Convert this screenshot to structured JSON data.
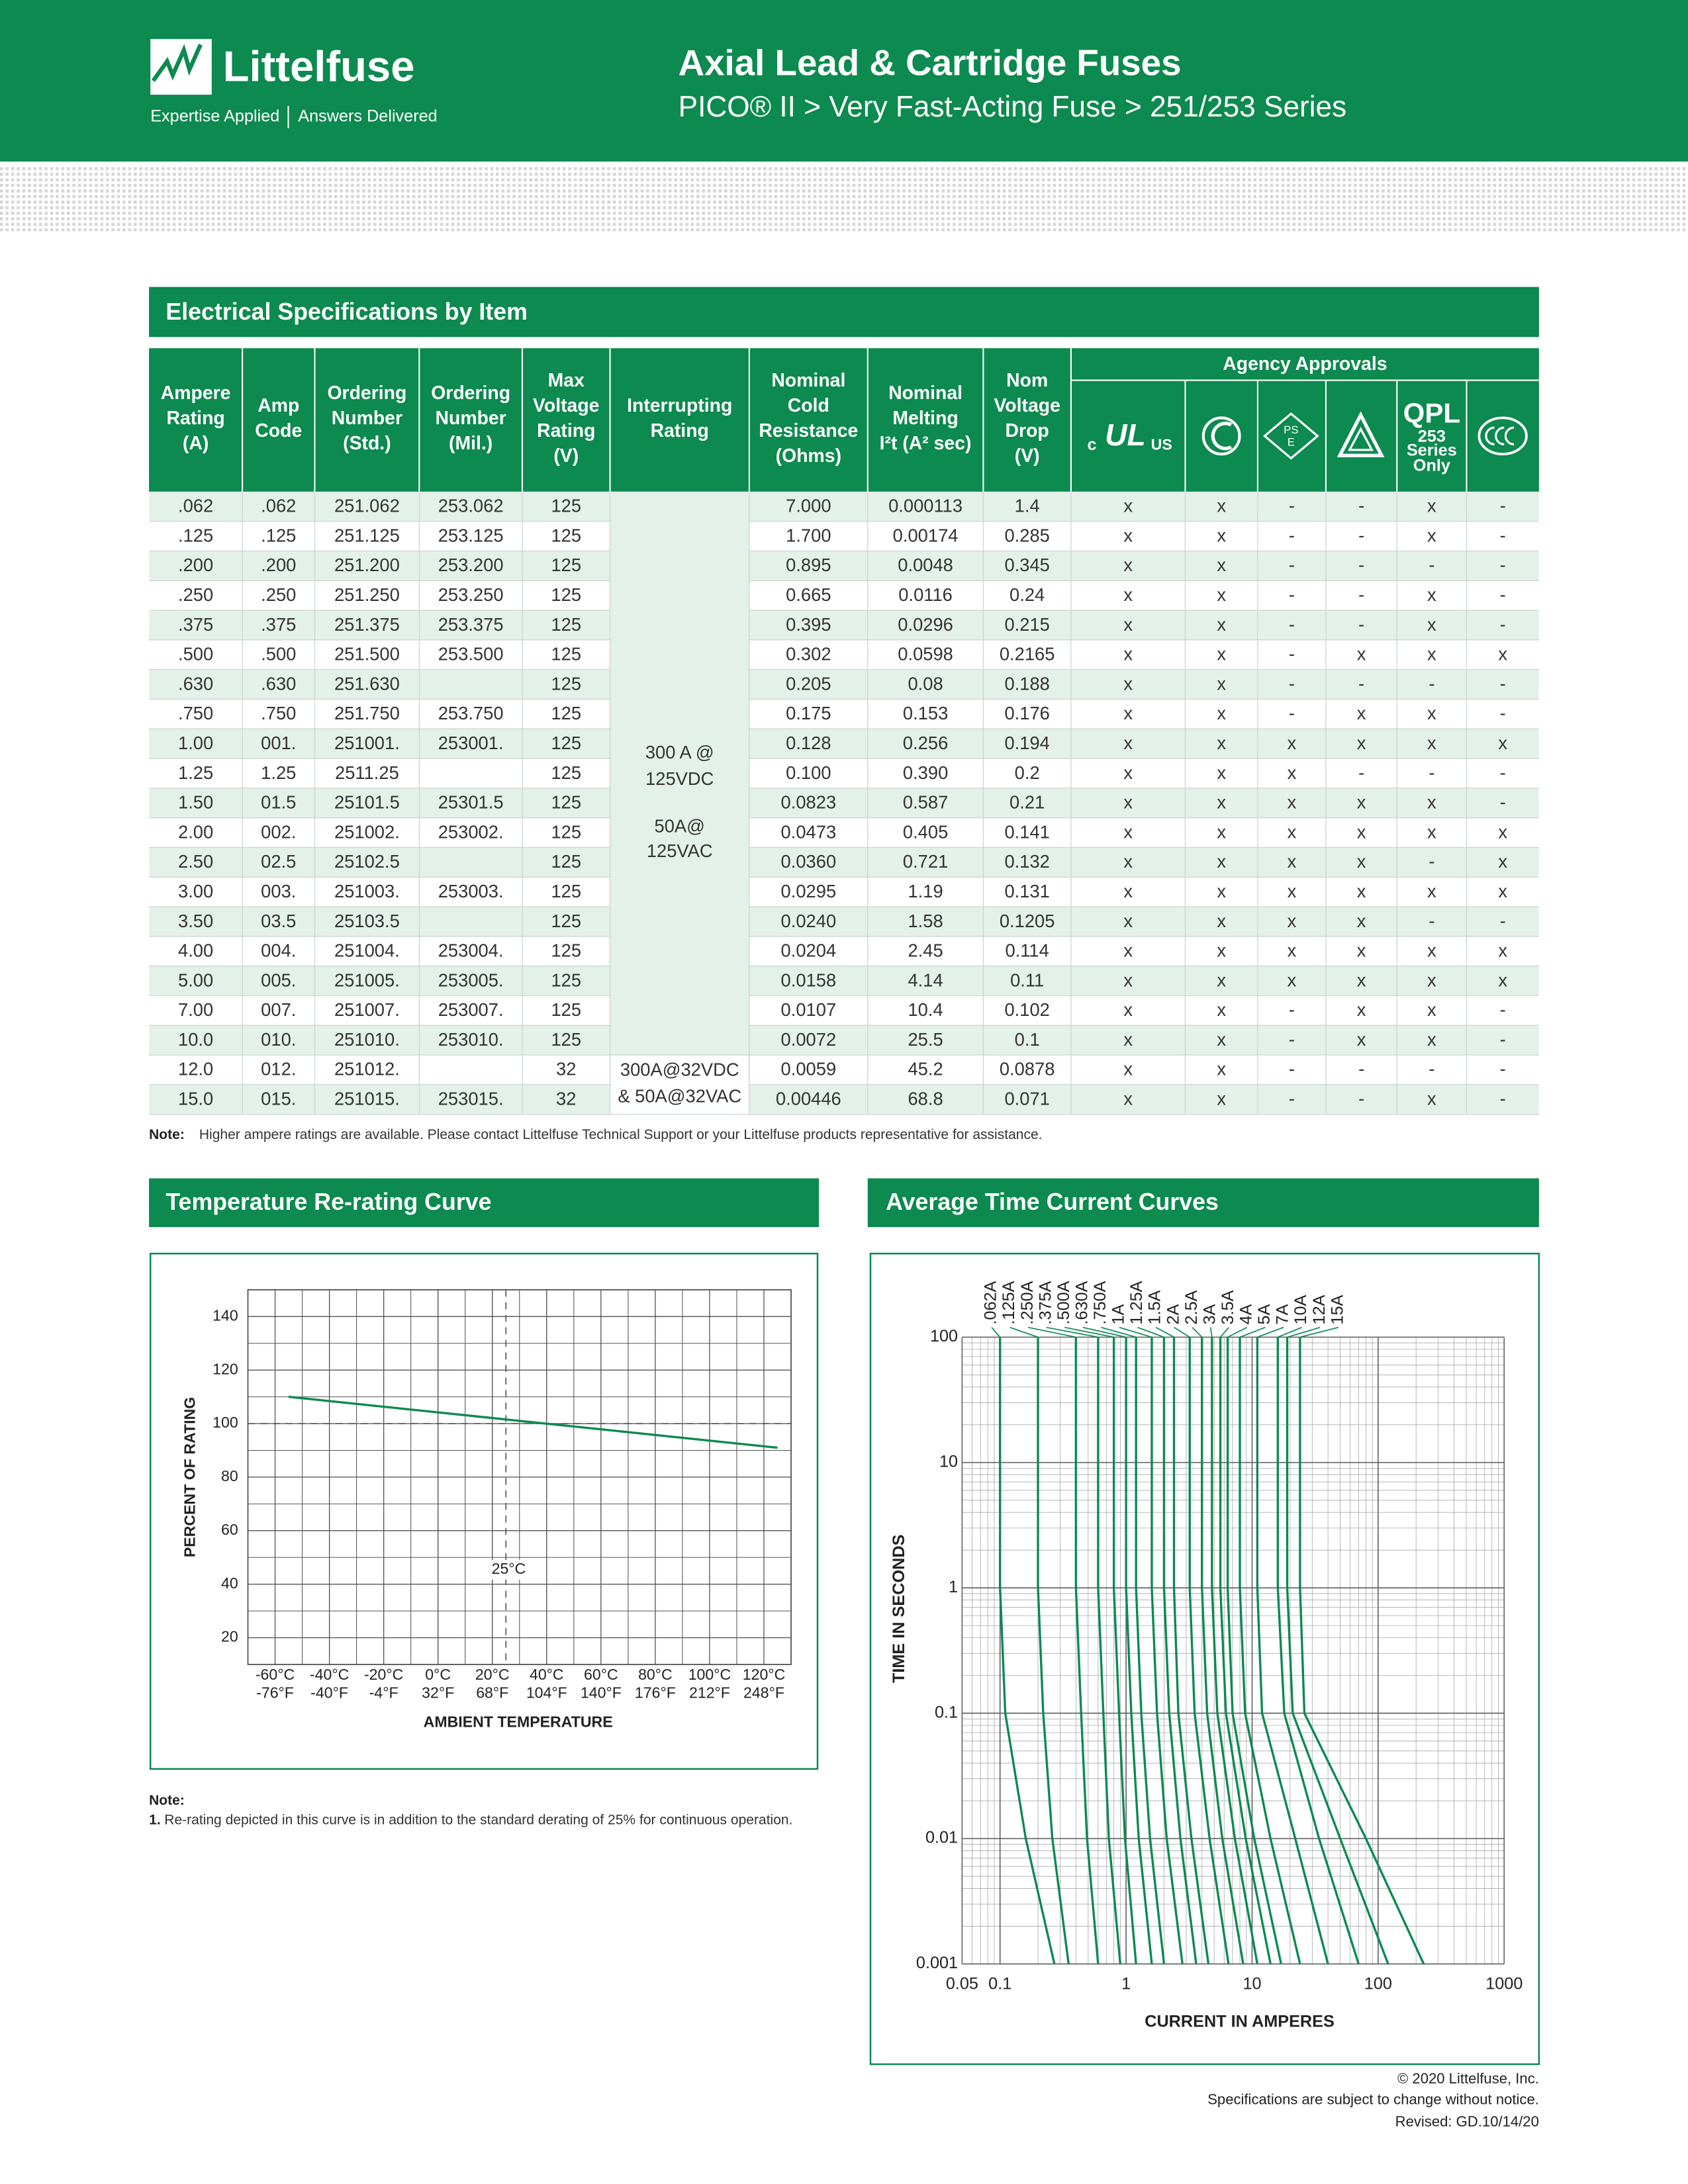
{
  "header": {
    "logo": "Littelfuse",
    "tagline": [
      "Expertise Applied",
      "Answers Delivered"
    ],
    "title": "Axial Lead & Cartridge Fuses",
    "subtitle": "PICO® II > Very Fast-Acting Fuse > 251/253 Series"
  },
  "specs": {
    "title": "Electrical Specifications by Item",
    "header": [
      [
        "Ampere",
        "Rating",
        "(A)"
      ],
      [
        "Amp",
        "Code"
      ],
      [
        "Ordering",
        "Number",
        "(Std.)"
      ],
      [
        "Ordering",
        "Number",
        "(Mil.)"
      ],
      [
        "Max",
        "Voltage",
        "Rating",
        "(V)"
      ],
      [
        "Interrupting",
        "Rating"
      ],
      [
        "Nominal",
        "Cold",
        "Resistance",
        "(Ohms)"
      ],
      [
        "Nominal",
        "Melting",
        "I²t (A² sec)"
      ],
      [
        "Nom",
        "Voltage",
        "Drop",
        "(V)"
      ]
    ],
    "agency_header": "Agency Approvals",
    "icons": {
      "ul": [
        "c",
        "UL",
        "US"
      ],
      "pse": [
        "PS",
        "E"
      ],
      "qpl": [
        "QPL",
        "253",
        "Series",
        "Only"
      ]
    },
    "rows": [
      [
        ".062",
        ".062",
        "251.062",
        "253.062",
        "125",
        "7.000",
        "0.000113",
        "1.4",
        "x",
        "x",
        "-",
        "-",
        "x",
        "-"
      ],
      [
        ".125",
        ".125",
        "251.125",
        "253.125",
        "125",
        "1.700",
        "0.00174",
        "0.285",
        "x",
        "x",
        "-",
        "-",
        "x",
        "-"
      ],
      [
        ".200",
        ".200",
        "251.200",
        "253.200",
        "125",
        "0.895",
        "0.0048",
        "0.345",
        "x",
        "x",
        "-",
        "-",
        "-",
        "-"
      ],
      [
        ".250",
        ".250",
        "251.250",
        "253.250",
        "125",
        "0.665",
        "0.0116",
        "0.24",
        "x",
        "x",
        "-",
        "-",
        "x",
        "-"
      ],
      [
        ".375",
        ".375",
        "251.375",
        "253.375",
        "125",
        "0.395",
        "0.0296",
        "0.215",
        "x",
        "x",
        "-",
        "-",
        "x",
        "-"
      ],
      [
        ".500",
        ".500",
        "251.500",
        "253.500",
        "125",
        "0.302",
        "0.0598",
        "0.2165",
        "x",
        "x",
        "-",
        "x",
        "x",
        "x"
      ],
      [
        ".630",
        ".630",
        "251.630",
        null,
        "125",
        "0.205",
        "0.08",
        "0.188",
        "x",
        "x",
        "-",
        "-",
        "-",
        "-"
      ],
      [
        ".750",
        ".750",
        "251.750",
        "253.750",
        "125",
        "0.175",
        "0.153",
        "0.176",
        "x",
        "x",
        "-",
        "x",
        "x",
        "-"
      ],
      [
        "1.00",
        "001.",
        "251001.",
        "253001.",
        "125",
        "0.128",
        "0.256",
        "0.194",
        "x",
        "x",
        "x",
        "x",
        "x",
        "x"
      ],
      [
        "1.25",
        "1.25",
        "2511.25",
        null,
        "125",
        "0.100",
        "0.390",
        "0.2",
        "x",
        "x",
        "x",
        "-",
        "-",
        "-"
      ],
      [
        "1.50",
        "01.5",
        "25101.5",
        "25301.5",
        "125",
        "0.0823",
        "0.587",
        "0.21",
        "x",
        "x",
        "x",
        "x",
        "x",
        "-"
      ],
      [
        "2.00",
        "002.",
        "251002.",
        "253002.",
        "125",
        "0.0473",
        "0.405",
        "0.141",
        "x",
        "x",
        "x",
        "x",
        "x",
        "x"
      ],
      [
        "2.50",
        "02.5",
        "25102.5",
        null,
        "125",
        "0.0360",
        "0.721",
        "0.132",
        "x",
        "x",
        "x",
        "x",
        "-",
        "x"
      ],
      [
        "3.00",
        "003.",
        "251003.",
        "253003.",
        "125",
        "0.0295",
        "1.19",
        "0.131",
        "x",
        "x",
        "x",
        "x",
        "x",
        "x"
      ],
      [
        "3.50",
        "03.5",
        "25103.5",
        null,
        "125",
        "0.0240",
        "1.58",
        "0.1205",
        "x",
        "x",
        "x",
        "x",
        "-",
        "-"
      ],
      [
        "4.00",
        "004.",
        "251004.",
        "253004.",
        "125",
        "0.0204",
        "2.45",
        "0.114",
        "x",
        "x",
        "x",
        "x",
        "x",
        "x"
      ],
      [
        "5.00",
        "005.",
        "251005.",
        "253005.",
        "125",
        "0.0158",
        "4.14",
        "0.11",
        "x",
        "x",
        "x",
        "x",
        "x",
        "x"
      ],
      [
        "7.00",
        "007.",
        "251007.",
        "253007.",
        "125",
        "0.0107",
        "10.4",
        "0.102",
        "x",
        "x",
        "-",
        "x",
        "x",
        "-"
      ],
      [
        "10.0",
        "010.",
        "251010.",
        "253010.",
        "125",
        "0.0072",
        "25.5",
        "0.1",
        "x",
        "x",
        "-",
        "x",
        "x",
        "-"
      ],
      [
        "12.0",
        "012.",
        "251012.",
        null,
        "32",
        "0.0059",
        "45.2",
        "0.0878",
        "x",
        "x",
        "-",
        "-",
        "-",
        "-"
      ],
      [
        "15.0",
        "015.",
        "251015.",
        "253015.",
        "32",
        "0.00446",
        "68.8",
        "0.071",
        "x",
        "x",
        "-",
        "-",
        "x",
        "-"
      ]
    ],
    "interrupting": [
      [
        "300 A @",
        "125VDC",
        "50A@",
        "125VAC"
      ],
      [
        "300A@32VDC",
        "& 50A@32VAC"
      ]
    ],
    "note": {
      "label": "Note:",
      "text": "Higher ampere ratings are available. Please contact Littelfuse Technical Support or your Littelfuse products representative for assistance."
    }
  },
  "chart_data": [
    {
      "type": "line",
      "title": "Temperature Re-rating Curve",
      "xlabel": "AMBIENT TEMPERATURE",
      "ylabel": "PERCENT OF RATING",
      "x": [
        -55,
        125
      ],
      "series": [
        {
          "name": "Re-rating",
          "color": "#0c8a4f",
          "values": [
            110,
            91
          ]
        }
      ],
      "xlim": [
        -70,
        130
      ],
      "ylim": [
        10,
        150
      ],
      "xticks": [
        {
          "value": -60,
          "label": "-60°C",
          "label_f": "-76°F"
        },
        {
          "value": -40,
          "label": "-40°C",
          "label_f": "-40°F"
        },
        {
          "value": -20,
          "label": "-20°C",
          "label_f": "-4°F"
        },
        {
          "value": 0,
          "label": "0°C",
          "label_f": "32°F"
        },
        {
          "value": 20,
          "label": "20°C",
          "label_f": "68°F"
        },
        {
          "value": 40,
          "label": "40°C",
          "label_f": "104°F"
        },
        {
          "value": 60,
          "label": "60°C",
          "label_f": "140°F"
        },
        {
          "value": 80,
          "label": "80°C",
          "label_f": "176°F"
        },
        {
          "value": 100,
          "label": "100°C",
          "label_f": "212°F"
        },
        {
          "value": 120,
          "label": "120°C",
          "label_f": "248°F"
        }
      ],
      "yticks": [
        20,
        40,
        60,
        80,
        100,
        120,
        140
      ],
      "grid": true,
      "reference": {
        "x": 25,
        "y": 100,
        "label": "25°C"
      },
      "note": {
        "label": "Note:",
        "number": "1.",
        "text": "Re-rating depicted in this curve is in addition to the standard derating of 25% for continuous operation."
      }
    },
    {
      "type": "line",
      "title": "Average Time Current Curves",
      "xlabel": "CURRENT IN AMPERES",
      "ylabel": "TIME IN SECONDS",
      "log_x": true,
      "log_y": true,
      "xlim": [
        0.05,
        1000
      ],
      "ylim": [
        0.001,
        100
      ],
      "xticks": [
        0.05,
        0.1,
        1,
        10,
        100,
        1000
      ],
      "yticks": [
        0.001,
        0.01,
        0.1,
        1,
        10,
        100
      ],
      "grid": true,
      "y": [
        100,
        1,
        0.1,
        0.01,
        0.001
      ],
      "series": [
        {
          "name": ".062A",
          "color": "#0c8a4f",
          "x": [
            0.1,
            0.1,
            0.11,
            0.16,
            0.27
          ]
        },
        {
          "name": ".125A",
          "color": "#0c8a4f",
          "x": [
            0.2,
            0.2,
            0.22,
            0.26,
            0.35
          ]
        },
        {
          "name": ".250A",
          "color": "#0c8a4f",
          "x": [
            0.4,
            0.4,
            0.44,
            0.49,
            0.6
          ]
        },
        {
          "name": ".375A",
          "color": "#0c8a4f",
          "x": [
            0.6,
            0.6,
            0.66,
            0.73,
            0.9
          ]
        },
        {
          "name": ".500A",
          "color": "#0c8a4f",
          "x": [
            0.8,
            0.8,
            0.88,
            0.98,
            1.2
          ]
        },
        {
          "name": ".630A",
          "color": "#0c8a4f",
          "x": [
            1.0,
            1.0,
            1.1,
            1.26,
            1.6
          ]
        },
        {
          "name": ".750A",
          "color": "#0c8a4f",
          "x": [
            1.2,
            1.2,
            1.32,
            1.55,
            2
          ]
        },
        {
          "name": "1A",
          "color": "#0c8a4f",
          "x": [
            1.6,
            1.6,
            1.76,
            2.1,
            2.8
          ]
        },
        {
          "name": "1.25A",
          "color": "#0c8a4f",
          "x": [
            2.0,
            2.0,
            2.2,
            2.7,
            3.6
          ]
        },
        {
          "name": "1.5A",
          "color": "#0c8a4f",
          "x": [
            2.4,
            2.4,
            2.6,
            3.3,
            4.5
          ]
        },
        {
          "name": "2A",
          "color": "#0c8a4f",
          "x": [
            3.2,
            3.2,
            3.5,
            4.6,
            6.5
          ]
        },
        {
          "name": "2.5A",
          "color": "#0c8a4f",
          "x": [
            4.0,
            4.0,
            4.4,
            5.8,
            8.5
          ]
        },
        {
          "name": "3A",
          "color": "#0c8a4f",
          "x": [
            4.8,
            4.8,
            5.3,
            7.3,
            11
          ]
        },
        {
          "name": "3.5A",
          "color": "#0c8a4f",
          "x": [
            5.6,
            5.6,
            6.2,
            8.9,
            14
          ]
        },
        {
          "name": "4A",
          "color": "#0c8a4f",
          "x": [
            6.4,
            6.4,
            7.0,
            10.4,
            17
          ]
        },
        {
          "name": "5A",
          "color": "#0c8a4f",
          "x": [
            8.0,
            8.0,
            8.8,
            14,
            24
          ]
        },
        {
          "name": "7A",
          "color": "#0c8a4f",
          "x": [
            11,
            11,
            12,
            22,
            40
          ]
        },
        {
          "name": "10A",
          "color": "#0c8a4f",
          "x": [
            16,
            16,
            18,
            34,
            70
          ]
        },
        {
          "name": "12A",
          "color": "#0c8a4f",
          "x": [
            19,
            19,
            21,
            50,
            120
          ]
        },
        {
          "name": "15A",
          "color": "#0c8a4f",
          "x": [
            24,
            24,
            26,
            80,
            230
          ]
        }
      ]
    }
  ],
  "footer": [
    "© 2020 Littelfuse, Inc.",
    "Specifications are subject to change without notice.",
    "Revised: GD.10/14/20"
  ]
}
